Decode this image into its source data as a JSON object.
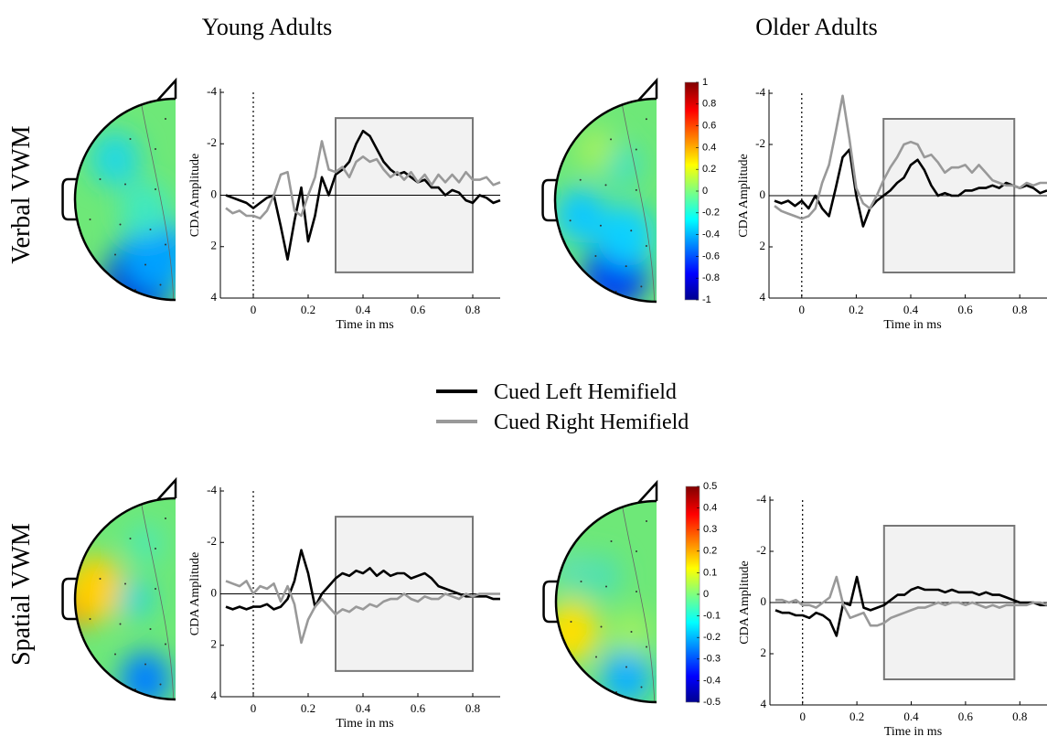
{
  "column_titles": [
    "Young Adults",
    "Older Adults"
  ],
  "row_labels": [
    "Verbal VWM",
    "Spatial VWM"
  ],
  "legend": [
    {
      "name": "Cued Left Hemifield",
      "color": "#000000"
    },
    {
      "name": "Cued Right Hemifield",
      "color": "#999999"
    }
  ],
  "colorbars": [
    {
      "lim": [
        -1,
        1
      ],
      "ticks": [
        1,
        0.8,
        0.6,
        0.4,
        0.2,
        0,
        -0.2,
        -0.4,
        -0.6,
        -0.8,
        -1
      ]
    },
    {
      "lim": [
        -0.5,
        0.5
      ],
      "ticks": [
        0.5,
        0.4,
        0.3,
        0.2,
        0.1,
        0,
        -0.1,
        -0.2,
        -0.3,
        -0.4,
        -0.5
      ]
    }
  ],
  "chart_data": [
    {
      "type": "line",
      "xlabel": "Time in ms",
      "ylabel": "CDA Amplitude",
      "xlim": [
        -0.1,
        0.9
      ],
      "ylim": [
        4,
        -4
      ],
      "xticks": [
        0,
        0.2,
        0.4,
        0.6,
        0.8
      ],
      "yticks": [
        -4,
        -2,
        0,
        2,
        4
      ],
      "vline": 0,
      "hline": 0,
      "window": {
        "x": [
          0.3,
          0.8
        ],
        "y": [
          -3,
          3
        ]
      },
      "x": [
        -0.1,
        -0.075,
        -0.05,
        -0.025,
        0,
        0.025,
        0.05,
        0.075,
        0.1,
        0.125,
        0.15,
        0.175,
        0.2,
        0.225,
        0.25,
        0.275,
        0.3,
        0.325,
        0.35,
        0.375,
        0.4,
        0.425,
        0.45,
        0.475,
        0.5,
        0.525,
        0.55,
        0.575,
        0.6,
        0.625,
        0.65,
        0.675,
        0.7,
        0.725,
        0.75,
        0.775,
        0.8,
        0.825,
        0.85,
        0.875,
        0.9
      ],
      "series": [
        {
          "color": "#000000",
          "values": [
            0,
            0.1,
            0.2,
            0.3,
            0.5,
            0.3,
            0.1,
            0,
            1.2,
            2.5,
            1.0,
            -0.3,
            1.8,
            0.8,
            -0.7,
            0,
            -0.8,
            -1.0,
            -1.3,
            -2.0,
            -2.5,
            -2.3,
            -1.8,
            -1.3,
            -1.0,
            -0.8,
            -0.9,
            -0.7,
            -0.5,
            -0.6,
            -0.3,
            -0.3,
            0,
            -0.2,
            -0.1,
            0.2,
            0.3,
            0,
            0.1,
            0.3,
            0.2
          ]
        },
        {
          "color": "#999999",
          "values": [
            0.5,
            0.7,
            0.6,
            0.8,
            0.8,
            0.9,
            0.6,
            0,
            -0.8,
            -0.9,
            0.6,
            0.8,
            0,
            -0.7,
            -2.1,
            -1.0,
            -0.9,
            -1.1,
            -0.7,
            -1.3,
            -1.5,
            -1.3,
            -1.4,
            -1.0,
            -0.7,
            -0.9,
            -0.6,
            -0.9,
            -0.5,
            -0.8,
            -0.4,
            -0.8,
            -0.5,
            -0.8,
            -0.5,
            -0.9,
            -0.6,
            -0.6,
            -0.7,
            -0.4,
            -0.5
          ]
        }
      ]
    },
    {
      "type": "line",
      "xlabel": "Time in ms",
      "ylabel": "CDA Amplitude",
      "xlim": [
        -0.1,
        0.9
      ],
      "ylim": [
        4,
        -4
      ],
      "xticks": [
        0,
        0.2,
        0.4,
        0.6,
        0.8
      ],
      "yticks": [
        -4,
        -2,
        0,
        2,
        4
      ],
      "vline": 0,
      "hline": 0,
      "window": {
        "x": [
          0.3,
          0.78
        ],
        "y": [
          -3,
          3
        ]
      },
      "x": [
        -0.1,
        -0.075,
        -0.05,
        -0.025,
        0,
        0.025,
        0.05,
        0.075,
        0.1,
        0.125,
        0.15,
        0.175,
        0.2,
        0.225,
        0.25,
        0.275,
        0.3,
        0.325,
        0.35,
        0.375,
        0.4,
        0.425,
        0.45,
        0.475,
        0.5,
        0.525,
        0.55,
        0.575,
        0.6,
        0.625,
        0.65,
        0.675,
        0.7,
        0.725,
        0.75,
        0.775,
        0.8,
        0.825,
        0.85,
        0.875,
        0.9
      ],
      "series": [
        {
          "color": "#000000",
          "values": [
            0.2,
            0.3,
            0.2,
            0.4,
            0.2,
            0.5,
            0,
            0.5,
            0.8,
            -0.3,
            -1.5,
            -1.8,
            0,
            1.2,
            0.5,
            0.2,
            0,
            -0.2,
            -0.5,
            -0.7,
            -1.2,
            -1.4,
            -1.0,
            -0.4,
            0,
            -0.1,
            0,
            0,
            -0.2,
            -0.2,
            -0.3,
            -0.3,
            -0.4,
            -0.3,
            -0.5,
            -0.4,
            -0.3,
            -0.4,
            -0.3,
            -0.1,
            -0.2
          ]
        },
        {
          "color": "#999999",
          "values": [
            0.4,
            0.6,
            0.7,
            0.8,
            0.9,
            0.8,
            0.5,
            -0.5,
            -1.2,
            -2.5,
            -3.9,
            -2.2,
            -0.3,
            0.3,
            0.5,
            0,
            -0.6,
            -1.1,
            -1.5,
            -2.0,
            -2.1,
            -2.0,
            -1.5,
            -1.6,
            -1.3,
            -0.9,
            -1.1,
            -1.1,
            -1.2,
            -0.9,
            -1.2,
            -0.9,
            -0.6,
            -0.5,
            -0.4,
            -0.4,
            -0.3,
            -0.5,
            -0.4,
            -0.5,
            -0.5
          ]
        }
      ]
    },
    {
      "type": "line",
      "xlabel": "Time in ms",
      "ylabel": "CDA Amplitude",
      "xlim": [
        -0.1,
        0.9
      ],
      "ylim": [
        4,
        -4
      ],
      "xticks": [
        0,
        0.2,
        0.4,
        0.6,
        0.8
      ],
      "yticks": [
        -4,
        -2,
        0,
        2,
        4
      ],
      "vline": 0,
      "hline": 0,
      "window": {
        "x": [
          0.3,
          0.8
        ],
        "y": [
          -3,
          3
        ]
      },
      "x": [
        -0.1,
        -0.075,
        -0.05,
        -0.025,
        0,
        0.025,
        0.05,
        0.075,
        0.1,
        0.125,
        0.15,
        0.175,
        0.2,
        0.225,
        0.25,
        0.275,
        0.3,
        0.325,
        0.35,
        0.375,
        0.4,
        0.425,
        0.45,
        0.475,
        0.5,
        0.525,
        0.55,
        0.575,
        0.6,
        0.625,
        0.65,
        0.675,
        0.7,
        0.725,
        0.75,
        0.775,
        0.8,
        0.825,
        0.85,
        0.875,
        0.9
      ],
      "series": [
        {
          "color": "#000000",
          "values": [
            0.5,
            0.6,
            0.5,
            0.6,
            0.5,
            0.5,
            0.4,
            0.6,
            0.5,
            0.2,
            -0.5,
            -1.7,
            -0.8,
            0.5,
            0,
            -0.3,
            -0.6,
            -0.8,
            -0.7,
            -0.9,
            -0.8,
            -1.0,
            -0.7,
            -0.9,
            -0.7,
            -0.8,
            -0.8,
            -0.6,
            -0.7,
            -0.8,
            -0.6,
            -0.3,
            -0.2,
            -0.1,
            0,
            0.1,
            0.1,
            0.1,
            0.1,
            0.2,
            0.2
          ]
        },
        {
          "color": "#999999",
          "values": [
            -0.5,
            -0.4,
            -0.3,
            -0.5,
            0,
            -0.3,
            -0.2,
            -0.4,
            0.3,
            -0.3,
            0.4,
            1.9,
            1.0,
            0.5,
            0.2,
            0.5,
            0.8,
            0.6,
            0.7,
            0.5,
            0.6,
            0.4,
            0.5,
            0.3,
            0.2,
            0.2,
            0,
            0.2,
            0.3,
            0.1,
            0.2,
            0.2,
            0,
            0.1,
            0.2,
            0,
            0.1,
            0,
            0,
            0,
            0
          ]
        }
      ]
    },
    {
      "type": "line",
      "xlabel": "Time in ms",
      "ylabel": "CDA Amplitude",
      "xlim": [
        -0.1,
        0.9
      ],
      "ylim": [
        4,
        -4
      ],
      "xticks": [
        0,
        0.2,
        0.4,
        0.6,
        0.8
      ],
      "yticks": [
        -4,
        -2,
        0,
        2,
        4
      ],
      "vline": 0,
      "hline": 0,
      "window": {
        "x": [
          0.3,
          0.78
        ],
        "y": [
          -3,
          3
        ]
      },
      "x": [
        -0.1,
        -0.075,
        -0.05,
        -0.025,
        0,
        0.025,
        0.05,
        0.075,
        0.1,
        0.125,
        0.15,
        0.175,
        0.2,
        0.225,
        0.25,
        0.275,
        0.3,
        0.325,
        0.35,
        0.375,
        0.4,
        0.425,
        0.45,
        0.475,
        0.5,
        0.525,
        0.55,
        0.575,
        0.6,
        0.625,
        0.65,
        0.675,
        0.7,
        0.725,
        0.75,
        0.775,
        0.8,
        0.825,
        0.85,
        0.875,
        0.9
      ],
      "series": [
        {
          "color": "#000000",
          "values": [
            0.3,
            0.4,
            0.4,
            0.5,
            0.5,
            0.6,
            0.4,
            0.5,
            0.7,
            1.3,
            0,
            0.1,
            -1.0,
            0.2,
            0.3,
            0.2,
            0.1,
            -0.1,
            -0.3,
            -0.3,
            -0.5,
            -0.6,
            -0.5,
            -0.5,
            -0.5,
            -0.4,
            -0.5,
            -0.4,
            -0.4,
            -0.4,
            -0.3,
            -0.4,
            -0.3,
            -0.3,
            -0.2,
            -0.1,
            0,
            0,
            0,
            0.1,
            0.1
          ]
        },
        {
          "color": "#999999",
          "values": [
            -0.1,
            -0.1,
            0,
            -0.1,
            0.1,
            0.1,
            0.2,
            0,
            -0.2,
            -1.0,
            0.1,
            0.6,
            0.5,
            0.4,
            0.9,
            0.9,
            0.8,
            0.6,
            0.5,
            0.4,
            0.3,
            0.2,
            0.2,
            0.1,
            0,
            0.1,
            0,
            0,
            0.1,
            0,
            0.1,
            0.2,
            0.1,
            0.2,
            0.1,
            0.1,
            0.1,
            0.1,
            0,
            0,
            0.1
          ]
        }
      ]
    }
  ]
}
